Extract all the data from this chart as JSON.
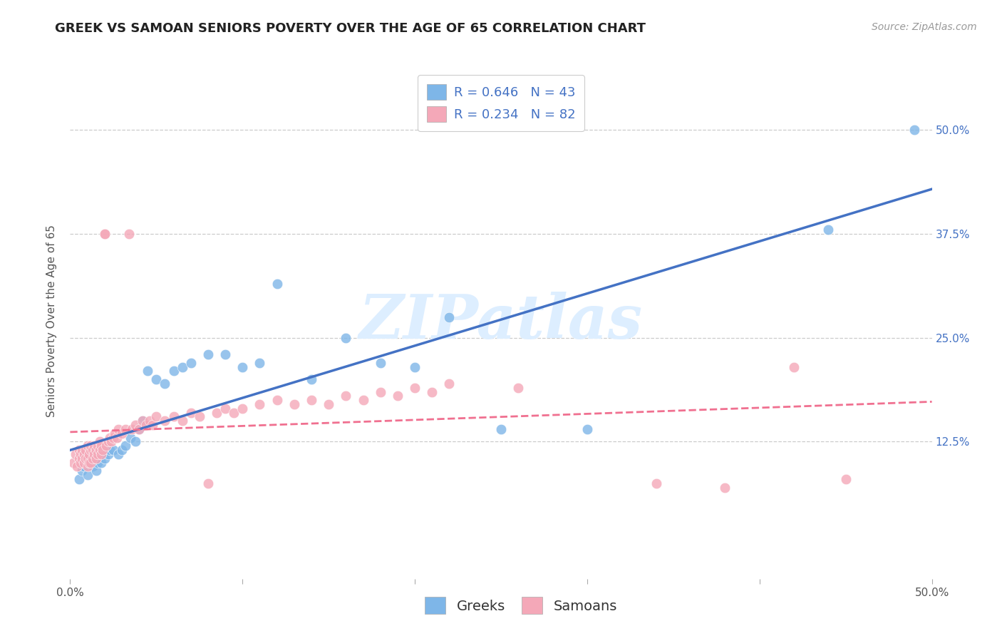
{
  "title": "GREEK VS SAMOAN SENIORS POVERTY OVER THE AGE OF 65 CORRELATION CHART",
  "source": "Source: ZipAtlas.com",
  "ylabel": "Seniors Poverty Over the Age of 65",
  "xlim": [
    0.0,
    0.5
  ],
  "ylim": [
    -0.04,
    0.58
  ],
  "xtick_positions": [
    0.0,
    0.5
  ],
  "xticklabels": [
    "0.0%",
    "50.0%"
  ],
  "ytick_positions": [
    0.0,
    0.125,
    0.25,
    0.375,
    0.5
  ],
  "ytick_right_labels": [
    "",
    "12.5%",
    "25.0%",
    "37.5%",
    "50.0%"
  ],
  "greek_color": "#7EB6E8",
  "samoan_color": "#F4A8B8",
  "greek_line_color": "#4472C4",
  "samoan_line_color": "#F07090",
  "greek_R": 0.646,
  "greek_N": 43,
  "samoan_R": 0.234,
  "samoan_N": 82,
  "background_color": "#FFFFFF",
  "grid_color": "#CCCCCC",
  "watermark": "ZIPatlas",
  "watermark_color": "#DDEEFF",
  "title_fontsize": 13,
  "axis_label_fontsize": 11,
  "tick_fontsize": 11,
  "legend_fontsize": 13,
  "source_fontsize": 10,
  "bottom_legend_labels": [
    "Greeks",
    "Samoans"
  ],
  "greek_x": [
    0.005,
    0.007,
    0.008,
    0.01,
    0.01,
    0.012,
    0.013,
    0.014,
    0.015,
    0.016,
    0.017,
    0.018,
    0.02,
    0.022,
    0.023,
    0.025,
    0.028,
    0.03,
    0.032,
    0.035,
    0.038,
    0.04,
    0.042,
    0.045,
    0.05,
    0.055,
    0.06,
    0.065,
    0.07,
    0.08,
    0.09,
    0.1,
    0.11,
    0.12,
    0.14,
    0.16,
    0.18,
    0.2,
    0.22,
    0.25,
    0.3,
    0.44,
    0.49
  ],
  "greek_y": [
    0.08,
    0.09,
    0.095,
    0.085,
    0.1,
    0.105,
    0.095,
    0.1,
    0.09,
    0.1,
    0.11,
    0.1,
    0.105,
    0.11,
    0.115,
    0.115,
    0.11,
    0.115,
    0.12,
    0.13,
    0.125,
    0.14,
    0.15,
    0.21,
    0.2,
    0.195,
    0.21,
    0.215,
    0.22,
    0.23,
    0.23,
    0.215,
    0.22,
    0.315,
    0.2,
    0.25,
    0.22,
    0.215,
    0.275,
    0.14,
    0.14,
    0.38,
    0.5
  ],
  "samoan_x": [
    0.002,
    0.003,
    0.004,
    0.005,
    0.005,
    0.006,
    0.006,
    0.007,
    0.007,
    0.008,
    0.008,
    0.009,
    0.009,
    0.01,
    0.01,
    0.01,
    0.011,
    0.011,
    0.012,
    0.012,
    0.012,
    0.013,
    0.013,
    0.014,
    0.014,
    0.015,
    0.015,
    0.016,
    0.016,
    0.017,
    0.017,
    0.018,
    0.018,
    0.019,
    0.02,
    0.02,
    0.021,
    0.022,
    0.023,
    0.024,
    0.025,
    0.026,
    0.027,
    0.028,
    0.03,
    0.032,
    0.034,
    0.036,
    0.038,
    0.04,
    0.042,
    0.044,
    0.046,
    0.048,
    0.05,
    0.055,
    0.06,
    0.065,
    0.07,
    0.075,
    0.08,
    0.085,
    0.09,
    0.095,
    0.1,
    0.11,
    0.12,
    0.13,
    0.14,
    0.15,
    0.16,
    0.17,
    0.18,
    0.19,
    0.2,
    0.21,
    0.22,
    0.26,
    0.34,
    0.38,
    0.42,
    0.45
  ],
  "samoan_y": [
    0.1,
    0.11,
    0.095,
    0.105,
    0.115,
    0.1,
    0.11,
    0.105,
    0.115,
    0.1,
    0.11,
    0.105,
    0.115,
    0.095,
    0.105,
    0.12,
    0.1,
    0.11,
    0.1,
    0.115,
    0.12,
    0.105,
    0.115,
    0.11,
    0.12,
    0.105,
    0.115,
    0.11,
    0.12,
    0.115,
    0.125,
    0.11,
    0.12,
    0.115,
    0.375,
    0.375,
    0.12,
    0.125,
    0.13,
    0.125,
    0.13,
    0.135,
    0.13,
    0.14,
    0.135,
    0.14,
    0.375,
    0.14,
    0.145,
    0.14,
    0.15,
    0.145,
    0.15,
    0.145,
    0.155,
    0.15,
    0.155,
    0.15,
    0.16,
    0.155,
    0.075,
    0.16,
    0.165,
    0.16,
    0.165,
    0.17,
    0.175,
    0.17,
    0.175,
    0.17,
    0.18,
    0.175,
    0.185,
    0.18,
    0.19,
    0.185,
    0.195,
    0.19,
    0.075,
    0.07,
    0.215,
    0.08
  ]
}
